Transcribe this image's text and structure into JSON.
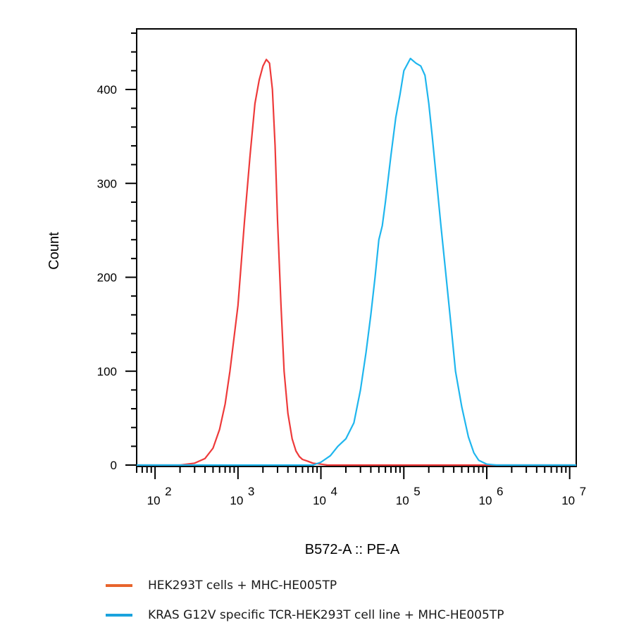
{
  "chart_data": {
    "type": "line",
    "xlabel": "B572-A :: PE-A",
    "ylabel": "Count",
    "x_scale": "log",
    "xlim": [
      60,
      12000000
    ],
    "ylim": [
      0,
      465
    ],
    "x_ticks": [
      {
        "base": "10",
        "exp": "2"
      },
      {
        "base": "10",
        "exp": "3"
      },
      {
        "base": "10",
        "exp": "4"
      },
      {
        "base": "10",
        "exp": "5"
      },
      {
        "base": "10",
        "exp": "6"
      },
      {
        "base": "10",
        "exp": "7"
      }
    ],
    "y_ticks": [
      "0",
      "100",
      "200",
      "300",
      "400"
    ],
    "series": [
      {
        "name": "HEK293T cells + MHC-HE005TP",
        "color": "#ee3a3a",
        "legend_color": "#e8642c",
        "x": [
          60,
          200,
          300,
          400,
          500,
          600,
          700,
          800,
          1000,
          1200,
          1400,
          1600,
          1800,
          2000,
          2200,
          2400,
          2600,
          2800,
          3000,
          3300,
          3600,
          4000,
          4500,
          5000,
          5500,
          6000,
          7000,
          8000,
          10000,
          12000,
          15000,
          12000000
        ],
        "y": [
          0,
          0,
          2,
          7,
          18,
          38,
          65,
          100,
          170,
          260,
          330,
          385,
          410,
          425,
          432,
          428,
          400,
          340,
          260,
          170,
          100,
          55,
          28,
          15,
          9,
          6,
          4,
          2,
          1,
          0,
          0,
          0
        ]
      },
      {
        "name": "KRAS G12V specific TCR-HEK293T cell line + MHC-HE005TP",
        "color": "#1fb6ee",
        "legend_color": "#1aa3dd",
        "x": [
          60,
          8000,
          10000,
          13000,
          16000,
          20000,
          25000,
          30000,
          35000,
          40000,
          45000,
          50000,
          55000,
          60000,
          70000,
          80000,
          90000,
          100000,
          120000,
          140000,
          160000,
          180000,
          200000,
          220000,
          250000,
          280000,
          320000,
          370000,
          420000,
          500000,
          600000,
          700000,
          800000,
          1000000,
          1300000,
          1700000,
          2200000,
          12000000
        ],
        "y": [
          0,
          0,
          3,
          10,
          20,
          28,
          45,
          80,
          120,
          160,
          200,
          240,
          255,
          280,
          330,
          370,
          395,
          420,
          433,
          428,
          425,
          415,
          385,
          350,
          300,
          255,
          205,
          150,
          100,
          62,
          30,
          13,
          5,
          1,
          0,
          0,
          0,
          0
        ]
      }
    ],
    "legend_position": "bottom",
    "grid": false
  }
}
